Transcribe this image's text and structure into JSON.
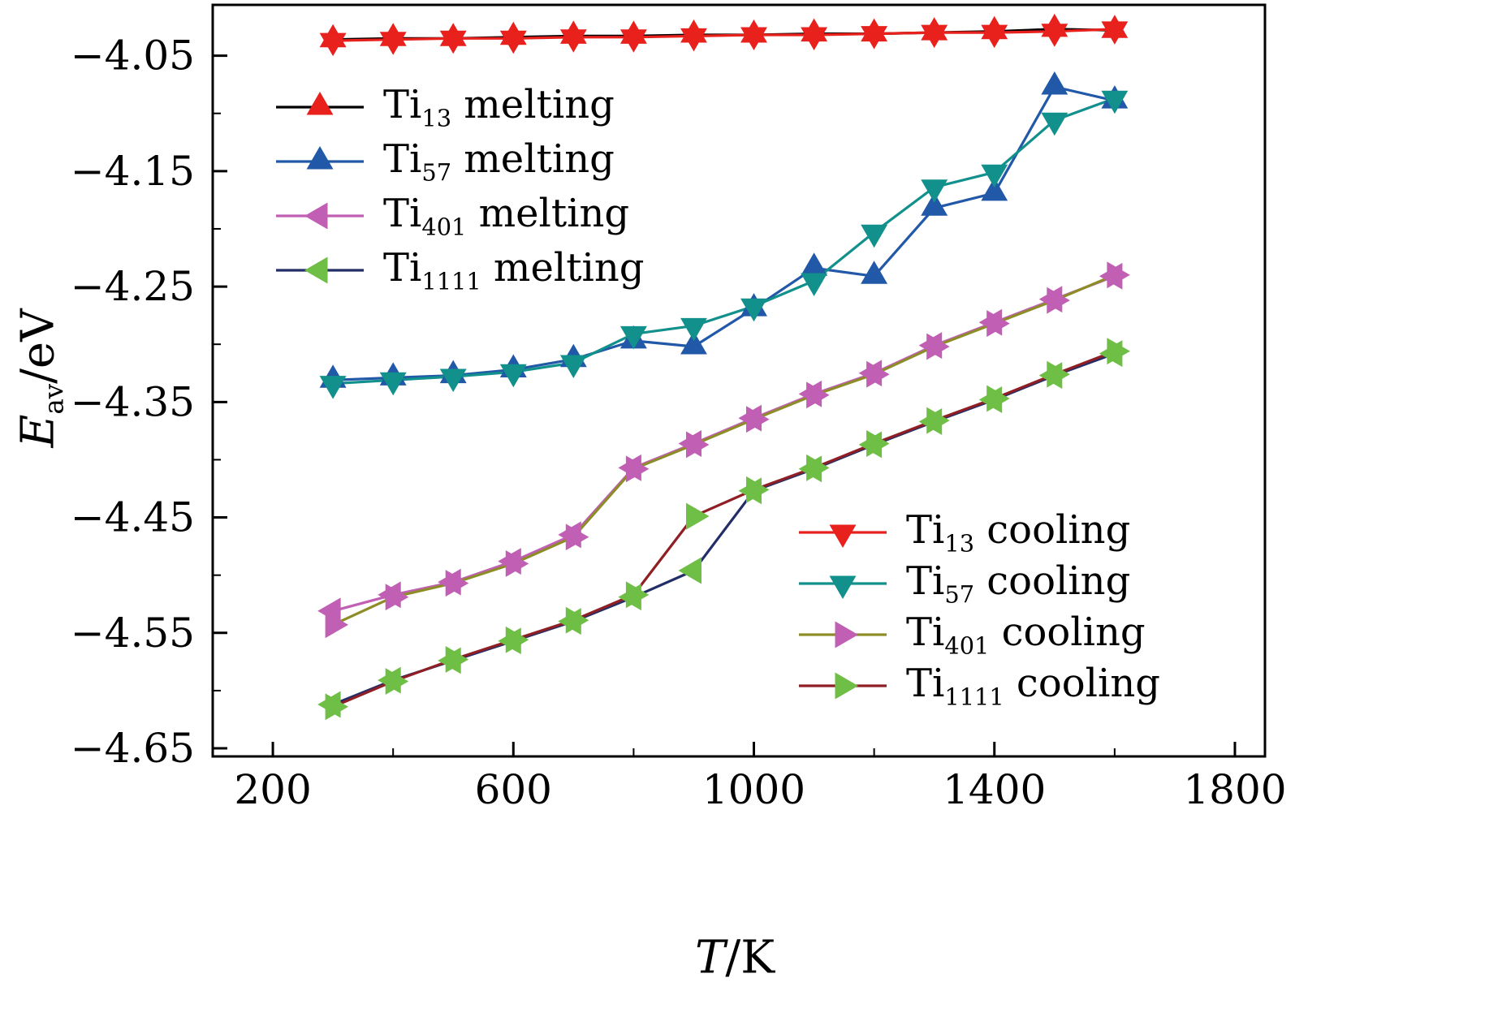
{
  "labels": {
    "y_pre": "E",
    "y_sub": "av",
    "y_post": "/eV",
    "x_pre": "T",
    "x_post": "/K"
  },
  "legends": {
    "melting": [
      {
        "pre": "Ti",
        "sub": "13",
        "post": " melting"
      },
      {
        "pre": "Ti",
        "sub": "57",
        "post": " melting"
      },
      {
        "pre": "Ti",
        "sub": "401",
        "post": " melting"
      },
      {
        "pre": "Ti",
        "sub": "1111",
        "post": " melting"
      }
    ],
    "cooling": [
      {
        "pre": "Ti",
        "sub": "13",
        "post": " cooling"
      },
      {
        "pre": "Ti",
        "sub": "57",
        "post": " cooling"
      },
      {
        "pre": "Ti",
        "sub": "401",
        "post": " cooling"
      },
      {
        "pre": "Ti",
        "sub": "1111",
        "post": " cooling"
      }
    ]
  },
  "chart_data": {
    "type": "line",
    "title": "",
    "xlabel": "T/K",
    "ylabel": "E_av/eV",
    "grid": false,
    "legend_positions": [
      "upper left",
      "lower right"
    ],
    "x": [
      300,
      400,
      500,
      600,
      700,
      800,
      900,
      1000,
      1100,
      1200,
      1300,
      1400,
      1500,
      1600
    ],
    "xlim": [
      100,
      1850
    ],
    "ylim": [
      -4.657,
      -4.006
    ],
    "xticks": [
      200,
      600,
      1000,
      1400,
      1800
    ],
    "yticks": [
      -4.05,
      -4.15,
      -4.25,
      -4.35,
      -4.45,
      -4.55,
      -4.65
    ],
    "xticks_minor": [
      400,
      800,
      1200,
      1600
    ],
    "yticks_minor": [
      -4.1,
      -4.2,
      -4.3,
      -4.4,
      -4.5,
      -4.6
    ],
    "axis_color": "#000000",
    "series": [
      {
        "name": "Ti13 melting",
        "marker": "triangle-up",
        "marker_color": "#e8211d",
        "line_color": "#000000",
        "values": [
          -4.036,
          -4.035,
          -4.035,
          -4.034,
          -4.033,
          -4.033,
          -4.032,
          -4.032,
          -4.031,
          -4.031,
          -4.03,
          -4.029,
          -4.027,
          -4.028
        ]
      },
      {
        "name": "Ti57 melting",
        "marker": "triangle-up",
        "marker_color": "#2158a8",
        "line_color": "#2158a8",
        "values": [
          -4.331,
          -4.329,
          -4.327,
          -4.322,
          -4.313,
          -4.297,
          -4.302,
          -4.269,
          -4.234,
          -4.241,
          -4.182,
          -4.169,
          -4.077,
          -4.089
        ]
      },
      {
        "name": "Ti401 melting",
        "marker": "triangle-left",
        "marker_color": "#c05fb4",
        "line_color": "#c05fb4",
        "values": [
          -4.531,
          -4.517,
          -4.506,
          -4.488,
          -4.465,
          -4.407,
          -4.386,
          -4.364,
          -4.343,
          -4.325,
          -4.301,
          -4.281,
          -4.261,
          -4.241
        ]
      },
      {
        "name": "Ti1111 melting",
        "marker": "triangle-left",
        "marker_color": "#6fbe45",
        "line_color": "#232e68",
        "values": [
          -4.612,
          -4.591,
          -4.574,
          -4.557,
          -4.54,
          -4.519,
          -4.496,
          -4.427,
          -4.408,
          -4.387,
          -4.367,
          -4.348,
          -4.327,
          -4.308
        ]
      },
      {
        "name": "Ti13 cooling",
        "marker": "triangle-down",
        "marker_color": "#e8211d",
        "line_color": "#e8211d",
        "values": [
          -4.037,
          -4.036,
          -4.035,
          -4.035,
          -4.034,
          -4.034,
          -4.033,
          -4.032,
          -4.032,
          -4.031,
          -4.03,
          -4.03,
          -4.029,
          -4.027
        ]
      },
      {
        "name": "Ti57 cooling",
        "marker": "triangle-down",
        "marker_color": "#12908c",
        "line_color": "#12908c",
        "values": [
          -4.334,
          -4.331,
          -4.328,
          -4.324,
          -4.316,
          -4.291,
          -4.284,
          -4.267,
          -4.245,
          -4.203,
          -4.164,
          -4.151,
          -4.106,
          -4.087
        ]
      },
      {
        "name": "Ti401 cooling",
        "marker": "triangle-right",
        "marker_color": "#c05fb4",
        "line_color": "#8d8d28",
        "values": [
          -4.543,
          -4.519,
          -4.507,
          -4.49,
          -4.467,
          -4.408,
          -4.387,
          -4.365,
          -4.344,
          -4.326,
          -4.302,
          -4.282,
          -4.262,
          -4.24
        ]
      },
      {
        "name": "Ti1111 cooling",
        "marker": "triangle-right",
        "marker_color": "#6fbe45",
        "line_color": "#8f1f24",
        "values": [
          -4.614,
          -4.592,
          -4.573,
          -4.556,
          -4.539,
          -4.517,
          -4.449,
          -4.426,
          -4.407,
          -4.386,
          -4.366,
          -4.347,
          -4.326,
          -4.306
        ]
      }
    ]
  }
}
